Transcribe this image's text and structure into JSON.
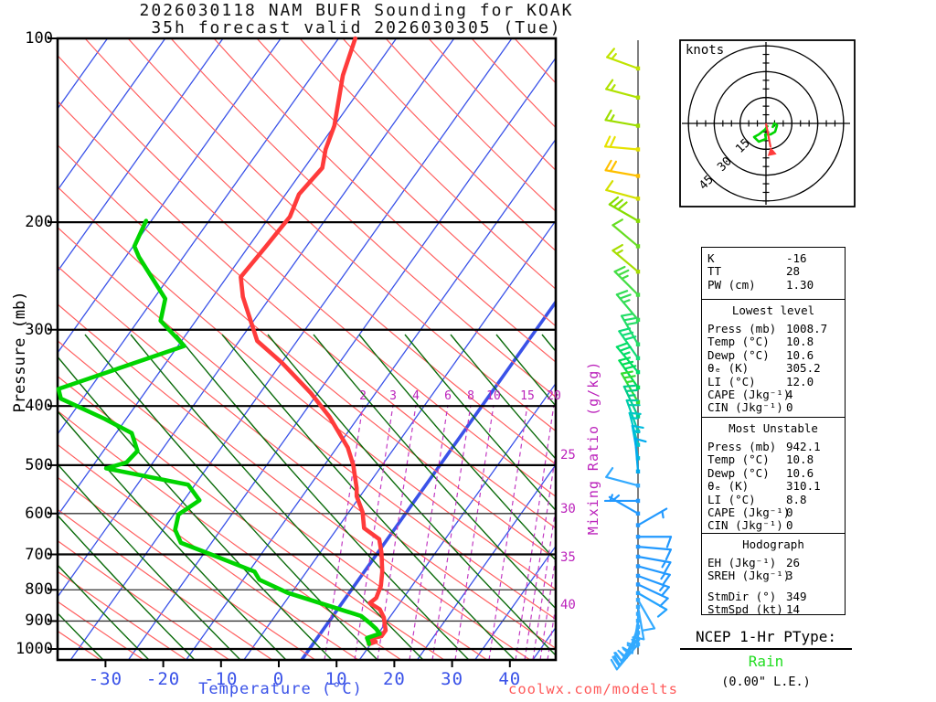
{
  "title": {
    "line1": "2026030118 NAM BUFR Sounding for KOAK",
    "line2": "35h forecast valid 2026030305 (Tue)"
  },
  "watermark": "coolwx.com/modelts",
  "axes": {
    "pressure_label": "Pressure (mb)",
    "pressure_ticks": [
      100,
      200,
      300,
      400,
      500,
      600,
      700,
      800,
      900,
      1000
    ],
    "temp_label": "Temperature (°C)",
    "temp_ticks": [
      -30,
      -20,
      -10,
      0,
      10,
      20,
      30,
      40
    ],
    "mixing_label": "Mixing Ratio (g/kg)",
    "mixing_ticks_top": [
      "2",
      "3",
      "4",
      "6",
      "8",
      "10",
      "15",
      "20"
    ],
    "mixing_ticks_right": [
      "25",
      "30",
      "35",
      "40"
    ]
  },
  "hodograph_panel": {
    "unit_label": "knots",
    "ring_labels": [
      "15",
      "30",
      "45"
    ]
  },
  "indices": {
    "sections": [
      {
        "header": null,
        "rows": [
          [
            "K",
            "-16"
          ],
          [
            "TT",
            "28"
          ],
          [
            "PW (cm)",
            "1.30"
          ]
        ]
      },
      {
        "header": "Lowest level",
        "rows": [
          [
            "Press (mb)",
            "1008.7"
          ],
          [
            "Temp (°C)",
            "10.8"
          ],
          [
            "Dewp (°C)",
            "10.6"
          ],
          [
            "θₑ (K)",
            "305.2"
          ],
          [
            "LI (°C)",
            "12.0"
          ],
          [
            "CAPE (Jkg⁻¹)",
            "4"
          ],
          [
            "CIN (Jkg⁻¹)",
            "0"
          ]
        ]
      },
      {
        "header": "Most Unstable",
        "rows": [
          [
            "Press (mb)",
            "942.1"
          ],
          [
            "Temp (°C)",
            "10.8"
          ],
          [
            "Dewp (°C)",
            "10.6"
          ],
          [
            "θₑ (K)",
            "310.1"
          ],
          [
            "LI (°C)",
            "8.8"
          ],
          [
            "CAPE (Jkg⁻¹)",
            "0"
          ],
          [
            "CIN (Jkg⁻¹)",
            "0"
          ]
        ]
      },
      {
        "header": "Hodograph",
        "rows": [
          [
            "EH (Jkg⁻¹)",
            "26"
          ],
          [
            "SREH (Jkg⁻¹)",
            "3"
          ],
          [
            "StmDir (°)",
            "349"
          ],
          [
            "StmSpd (kt)",
            "14"
          ]
        ]
      }
    ]
  },
  "ptype": {
    "heading": "NCEP 1-Hr PType:",
    "value": "Rain",
    "amount": "(0.00\" L.E.)"
  },
  "colors": {
    "temperature_curve": "#ff3b3b",
    "dewpoint_curve": "#00d400",
    "isotherm": "#3a52e8",
    "dry_adiabat": "#ff6060",
    "moist_adiabat": "#0b6b0b",
    "mixing_ratio": "#c23ac2",
    "ptype_value": "#22dd22"
  },
  "chart_data": {
    "type": "skewt-logp-sounding",
    "pressure_range_mb": [
      100,
      1000
    ],
    "temp_axis_range_c": [
      -40,
      45
    ],
    "temperature_profile": [
      [
        100,
        -67.1
      ],
      [
        115,
        -64.7
      ],
      [
        139,
        -60.0
      ],
      [
        152,
        -58.6
      ],
      [
        163,
        -56.9
      ],
      [
        180,
        -57.7
      ],
      [
        196,
        -56.5
      ],
      [
        219,
        -57.0
      ],
      [
        246,
        -57.6
      ],
      [
        265,
        -54.8
      ],
      [
        313,
        -46.9
      ],
      [
        340,
        -39.9
      ],
      [
        381,
        -31.2
      ],
      [
        417,
        -25.0
      ],
      [
        468,
        -18.1
      ],
      [
        500,
        -15.0
      ],
      [
        545,
        -11.6
      ],
      [
        562,
        -10.6
      ],
      [
        597,
        -7.6
      ],
      [
        634,
        -5.4
      ],
      [
        661,
        -1.4
      ],
      [
        695,
        0.6
      ],
      [
        747,
        3.1
      ],
      [
        788,
        4.6
      ],
      [
        825,
        5.3
      ],
      [
        841,
        4.8
      ],
      [
        861,
        7.3
      ],
      [
        888,
        9.0
      ],
      [
        932,
        10.9
      ],
      [
        953,
        10.9
      ],
      [
        962,
        9.2
      ],
      [
        973,
        10.6
      ],
      [
        982,
        9.7
      ]
    ],
    "dewpoint_profile": [
      [
        199,
        -80.9
      ],
      [
        219,
        -79.8
      ],
      [
        228,
        -77.7
      ],
      [
        267,
        -68.0
      ],
      [
        290,
        -66.1
      ],
      [
        319,
        -58.9
      ],
      [
        375,
        -75.4
      ],
      [
        389,
        -73.8
      ],
      [
        420,
        -63.7
      ],
      [
        443,
        -57.3
      ],
      [
        474,
        -54.1
      ],
      [
        495,
        -54.6
      ],
      [
        506,
        -57.4
      ],
      [
        538,
        -41.2
      ],
      [
        571,
        -37.3
      ],
      [
        602,
        -39.2
      ],
      [
        638,
        -37.9
      ],
      [
        670,
        -35.3
      ],
      [
        703,
        -28.0
      ],
      [
        747,
        -19.0
      ],
      [
        770,
        -17.2
      ],
      [
        809,
        -10.7
      ],
      [
        852,
        -1.5
      ],
      [
        883,
        4.9
      ],
      [
        906,
        7.2
      ],
      [
        926,
        9.0
      ],
      [
        944,
        10.3
      ],
      [
        959,
        8.6
      ],
      [
        981,
        9.7
      ]
    ],
    "wind_barbs": [
      {
        "p": 112,
        "dir": 290,
        "spd": 15,
        "color": "#c0e400"
      },
      {
        "p": 125,
        "dir": 285,
        "spd": 15,
        "color": "#b0e200"
      },
      {
        "p": 139,
        "dir": 280,
        "spd": 15,
        "color": "#9ede00"
      },
      {
        "p": 152,
        "dir": 275,
        "spd": 20,
        "color": "#e6e200"
      },
      {
        "p": 168,
        "dir": 280,
        "spd": 20,
        "color": "#ffc000"
      },
      {
        "p": 183,
        "dir": 285,
        "spd": 10,
        "color": "#d4e000"
      },
      {
        "p": 199,
        "dir": 300,
        "spd": 30,
        "color": "#86dd00"
      },
      {
        "p": 219,
        "dir": 310,
        "spd": 10,
        "color": "#66dd22"
      },
      {
        "p": 241,
        "dir": 310,
        "spd": 15,
        "color": "#a6dd00"
      },
      {
        "p": 263,
        "dir": 315,
        "spd": 25,
        "color": "#44dd44"
      },
      {
        "p": 289,
        "dir": 320,
        "spd": 25,
        "color": "#33dd55"
      },
      {
        "p": 317,
        "dir": 330,
        "spd": 30,
        "color": "#22dd66"
      },
      {
        "p": 334,
        "dir": 325,
        "spd": 30,
        "color": "#11dd77"
      },
      {
        "p": 352,
        "dir": 320,
        "spd": 25,
        "color": "#00dd66"
      },
      {
        "p": 373,
        "dir": 325,
        "spd": 30,
        "color": "#00dd55"
      },
      {
        "p": 394,
        "dir": 330,
        "spd": 25,
        "color": "#33dd33"
      },
      {
        "p": 416,
        "dir": 335,
        "spd": 25,
        "color": "#00cc88"
      },
      {
        "p": 440,
        "dir": 340,
        "spd": 20,
        "color": "#00ccaa"
      },
      {
        "p": 463,
        "dir": 345,
        "spd": 15,
        "color": "#00c8c8"
      },
      {
        "p": 487,
        "dir": 350,
        "spd": 15,
        "color": "#00bbdd"
      },
      {
        "p": 512,
        "dir": 355,
        "spd": 10,
        "color": "#00aaee"
      },
      {
        "p": 540,
        "dir": 285,
        "spd": 10,
        "color": "#33aaff"
      },
      {
        "p": 572,
        "dir": 270,
        "spd": 5,
        "color": "#2299ff"
      },
      {
        "p": 600,
        "dir": 300,
        "spd": 5,
        "color": "#2299ff"
      },
      {
        "p": 627,
        "dir": 60,
        "spd": 5,
        "color": "#2299ff"
      },
      {
        "p": 655,
        "dir": 90,
        "spd": 10,
        "color": "#2299ff"
      },
      {
        "p": 680,
        "dir": 95,
        "spd": 10,
        "color": "#2299ff"
      },
      {
        "p": 706,
        "dir": 100,
        "spd": 15,
        "color": "#2299ff"
      },
      {
        "p": 732,
        "dir": 105,
        "spd": 15,
        "color": "#2299ff"
      },
      {
        "p": 759,
        "dir": 110,
        "spd": 15,
        "color": "#2299ff"
      },
      {
        "p": 784,
        "dir": 115,
        "spd": 10,
        "color": "#2299ff"
      },
      {
        "p": 810,
        "dir": 120,
        "spd": 10,
        "color": "#22a2ff"
      },
      {
        "p": 831,
        "dir": 150,
        "spd": 10,
        "color": "#33aaff"
      },
      {
        "p": 853,
        "dir": 170,
        "spd": 10,
        "color": "#33aaff"
      },
      {
        "p": 876,
        "dir": 180,
        "spd": 15,
        "color": "#33aaff"
      },
      {
        "p": 899,
        "dir": 190,
        "spd": 15,
        "color": "#33aaff"
      },
      {
        "p": 920,
        "dir": 200,
        "spd": 15,
        "color": "#33aaff"
      },
      {
        "p": 941,
        "dir": 210,
        "spd": 15,
        "color": "#33aaff"
      },
      {
        "p": 963,
        "dir": 215,
        "spd": 20,
        "color": "#33aaff"
      },
      {
        "p": 982,
        "dir": 220,
        "spd": 20,
        "color": "#33aaff"
      }
    ],
    "hodograph": {
      "unit": "knots",
      "rings_kt": [
        15,
        30,
        45
      ],
      "trace_uv_kt": [
        [
          1.1,
          -1.1
        ],
        [
          -0.5,
          -3.5
        ],
        [
          -4.2,
          -6.4
        ],
        [
          -6.9,
          -7.9
        ],
        [
          -4.2,
          -10.6
        ],
        [
          0.0,
          -9.0
        ],
        [
          -0.5,
          -6.4
        ],
        [
          2.6,
          -6.4
        ],
        [
          5.3,
          -4.8
        ],
        [
          6.4,
          -1.1
        ],
        [
          4.8,
          0.0
        ],
        [
          3.7,
          -2.6
        ]
      ],
      "storm_motion": {
        "dir_deg": 349,
        "spd_kt": 14
      }
    }
  }
}
